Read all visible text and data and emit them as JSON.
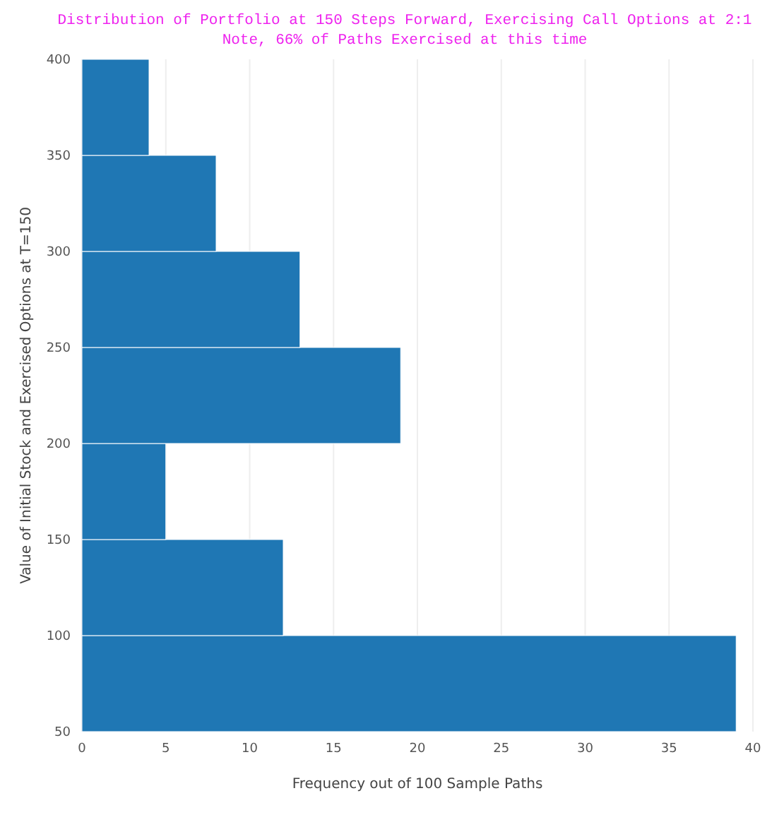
{
  "chart_data": {
    "type": "histogram",
    "orientation": "horizontal",
    "title": "Distribution of Portfolio at 150 Steps Forward, Exercising Call Options at 2:1",
    "subtitle": "Note, 66% of Paths Exercised at this time",
    "xlabel": "Frequency out of 100 Sample Paths",
    "ylabel": "Value of Initial Stock and Exercised Options at T=150",
    "bins": [
      50,
      100,
      150,
      200,
      250,
      300,
      350,
      400
    ],
    "values": [
      39,
      12,
      5,
      19,
      13,
      8,
      4
    ],
    "color": "#1f77b4",
    "xlim": [
      0,
      40
    ],
    "xticks": [
      0,
      5,
      10,
      15,
      20,
      25,
      30,
      35,
      40
    ],
    "ylim": [
      50,
      400
    ],
    "yticks": [
      50,
      100,
      150,
      200,
      250,
      300,
      350,
      400
    ],
    "grid": "x"
  }
}
